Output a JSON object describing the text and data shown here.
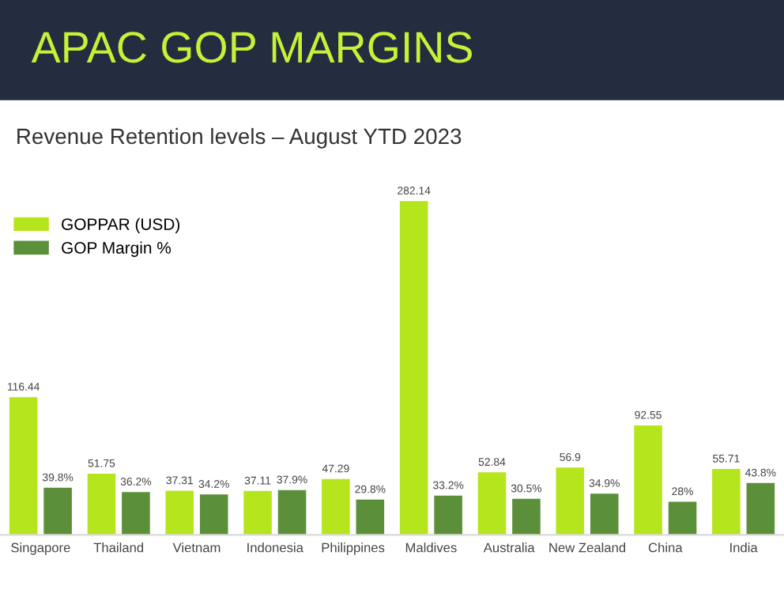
{
  "chart_data": {
    "type": "bar",
    "title": "APAC GOP MARGINS",
    "subtitle": "Revenue Retention levels – August YTD 2023",
    "categories": [
      "Singapore",
      "Thailand",
      "Vietnam",
      "Indonesia",
      "Philippines",
      "Maldives",
      "Australia",
      "New Zealand",
      "China",
      "India"
    ],
    "series": [
      {
        "name": "GOPPAR (USD)",
        "color": "#b5e61d",
        "values": [
          116.44,
          51.75,
          37.31,
          37.11,
          47.29,
          282.14,
          52.84,
          56.9,
          92.55,
          55.71
        ],
        "value_labels": [
          "116.44",
          "51.75",
          "37.31",
          "37.11",
          "47.29",
          "282.14",
          "52.84",
          "56.9",
          "92.55",
          "55.71"
        ]
      },
      {
        "name": "GOP Margin %",
        "color": "#5b8f3a",
        "values": [
          39.8,
          36.2,
          34.2,
          37.9,
          29.8,
          33.2,
          30.5,
          34.9,
          28,
          43.8
        ],
        "value_labels": [
          "39.8%",
          "36.2%",
          "34.2%",
          "37.9%",
          "29.8%",
          "33.2%",
          "30.5%",
          "34.9%",
          "28%",
          "43.8%"
        ]
      }
    ],
    "legend": "top left",
    "grid": false
  }
}
